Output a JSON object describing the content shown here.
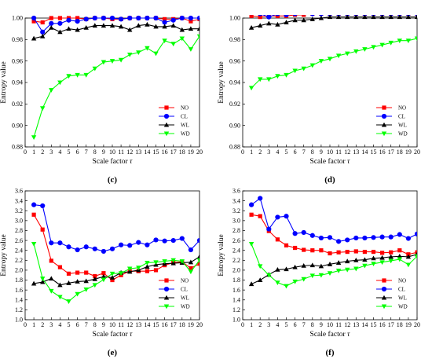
{
  "colors": {
    "NO": "#ff0000",
    "CL": "#0000ff",
    "WL": "#000000",
    "WD": "#00ff00"
  },
  "markers": {
    "NO": "square",
    "CL": "circle",
    "WL": "triangle-up",
    "WD": "triangle-down"
  },
  "chart_data": [
    {
      "type": "line",
      "panel_label": "(c)",
      "xlabel": "Scale factor",
      "xlabel_symbol": "τ",
      "ylabel": "Entropy value",
      "xlim": [
        0,
        20
      ],
      "ylim": [
        0.88,
        1.0
      ],
      "xticks": [
        "0",
        "1",
        "2",
        "3",
        "4",
        "5",
        "6",
        "7",
        "8",
        "9",
        "10",
        "11",
        "12",
        "13",
        "14",
        "15",
        "16",
        "17",
        "18",
        "19",
        "20"
      ],
      "yticks": [
        "0.88",
        "0.90",
        "0.92",
        "0.94",
        "0.96",
        "0.98",
        "1.00"
      ],
      "legend_position": "bottom-right",
      "x": [
        1,
        2,
        3,
        4,
        5,
        6,
        7,
        8,
        9,
        10,
        11,
        12,
        13,
        14,
        15,
        16,
        17,
        18,
        19,
        20
      ],
      "series": [
        {
          "name": "NO",
          "values": [
            0.997,
            0.996,
            1.0,
            1.0,
            1.0,
            1.0,
            0.999,
            1.0,
            1.0,
            0.999,
            0.999,
            1.0,
            1.0,
            1.0,
            1.0,
            0.999,
            0.999,
            1.0,
            0.997,
            0.999
          ]
        },
        {
          "name": "CL",
          "values": [
            1.0,
            0.987,
            0.995,
            0.995,
            0.998,
            0.997,
            0.999,
            1.0,
            1.0,
            1.0,
            0.999,
            1.0,
            1.0,
            1.0,
            1.0,
            0.996,
            0.998,
            1.0,
            1.0,
            1.0
          ]
        },
        {
          "name": "WL",
          "values": [
            0.981,
            0.983,
            0.991,
            0.987,
            0.99,
            0.989,
            0.991,
            0.993,
            0.993,
            0.993,
            0.992,
            0.989,
            0.993,
            0.994,
            0.992,
            0.992,
            0.993,
            0.989,
            0.99,
            0.99
          ]
        },
        {
          "name": "WD",
          "values": [
            0.889,
            0.916,
            0.933,
            0.94,
            0.946,
            0.947,
            0.947,
            0.953,
            0.959,
            0.96,
            0.961,
            0.966,
            0.968,
            0.972,
            0.967,
            0.979,
            0.976,
            0.981,
            0.971,
            0.983
          ]
        }
      ]
    },
    {
      "type": "line",
      "panel_label": "(d)",
      "xlabel": "Scale factor",
      "xlabel_symbol": "τ",
      "ylabel": "Entropy value",
      "xlim": [
        0,
        20
      ],
      "ylim": [
        0.88,
        1.0
      ],
      "xticks": [
        "0",
        "1",
        "2",
        "3",
        "4",
        "5",
        "6",
        "7",
        "8",
        "9",
        "10",
        "11",
        "12",
        "13",
        "14",
        "15",
        "16",
        "17",
        "18",
        "19",
        "20"
      ],
      "yticks": [
        "0.88",
        "0.90",
        "0.92",
        "0.94",
        "0.96",
        "0.98",
        "1.00"
      ],
      "legend_position": "bottom-right",
      "x": [
        1,
        2,
        3,
        4,
        5,
        6,
        7,
        8,
        9,
        10,
        11,
        12,
        13,
        14,
        15,
        16,
        17,
        18,
        19,
        20
      ],
      "series": [
        {
          "name": "NO",
          "values": [
            1.002,
            1.001,
            1.002,
            1.002,
            1.002,
            1.003,
            1.003,
            1.004,
            1.004,
            1.004,
            1.004,
            1.004,
            1.004,
            1.004,
            1.004,
            1.004,
            1.004,
            1.004,
            1.004,
            1.004
          ]
        },
        {
          "name": "CL",
          "values": [
            1.005,
            1.004,
            1.001,
            1.004,
            1.003,
            1.004,
            1.005,
            1.004,
            1.004,
            1.004,
            1.004,
            1.004,
            1.004,
            1.004,
            1.004,
            1.004,
            1.004,
            1.004,
            1.004,
            1.004
          ]
        },
        {
          "name": "WL",
          "values": [
            0.991,
            0.993,
            0.995,
            0.994,
            0.996,
            0.998,
            0.998,
            0.999,
            1.0,
            1.001,
            1.001,
            1.001,
            1.001,
            1.001,
            1.001,
            1.001,
            1.001,
            1.001,
            1.001,
            1.001
          ]
        },
        {
          "name": "WD",
          "values": [
            0.935,
            0.943,
            0.943,
            0.946,
            0.947,
            0.951,
            0.953,
            0.956,
            0.96,
            0.962,
            0.965,
            0.967,
            0.969,
            0.971,
            0.973,
            0.975,
            0.977,
            0.979,
            0.979,
            0.981
          ]
        }
      ]
    },
    {
      "type": "line",
      "panel_label": "(e)",
      "xlabel": "Scale factor",
      "xlabel_symbol": "τ",
      "ylabel": "Entropy value",
      "xlim": [
        0,
        20
      ],
      "ylim": [
        1.0,
        3.6
      ],
      "xticks": [
        "0",
        "1",
        "2",
        "3",
        "4",
        "5",
        "6",
        "7",
        "8",
        "9",
        "10",
        "11",
        "12",
        "13",
        "14",
        "15",
        "16",
        "17",
        "18",
        "19",
        "20"
      ],
      "yticks": [
        "1.0",
        "1.2",
        "1.4",
        "1.6",
        "1.8",
        "2.0",
        "2.2",
        "2.4",
        "2.6",
        "2.8",
        "3.0",
        "3.2",
        "3.4",
        "3.6"
      ],
      "legend_position": "bottom-right",
      "x": [
        1,
        2,
        3,
        4,
        5,
        6,
        7,
        8,
        9,
        10,
        11,
        12,
        13,
        14,
        15,
        16,
        17,
        18,
        19,
        20
      ],
      "series": [
        {
          "name": "NO",
          "values": [
            3.12,
            2.82,
            2.19,
            2.06,
            1.93,
            1.95,
            1.95,
            1.88,
            1.94,
            1.8,
            1.9,
            1.98,
            1.98,
            1.98,
            2.0,
            2.1,
            2.15,
            2.17,
            2.04,
            2.13
          ]
        },
        {
          "name": "CL",
          "values": [
            3.32,
            3.3,
            2.55,
            2.55,
            2.47,
            2.41,
            2.47,
            2.43,
            2.38,
            2.43,
            2.51,
            2.5,
            2.56,
            2.51,
            2.61,
            2.59,
            2.6,
            2.64,
            2.41,
            2.6
          ]
        },
        {
          "name": "WL",
          "values": [
            1.73,
            1.76,
            1.83,
            1.7,
            1.74,
            1.77,
            1.78,
            1.82,
            1.87,
            1.85,
            1.95,
            1.97,
            2.0,
            2.07,
            2.11,
            2.13,
            2.14,
            2.15,
            2.16,
            2.27
          ]
        },
        {
          "name": "WD",
          "values": [
            2.53,
            1.83,
            1.58,
            1.46,
            1.37,
            1.52,
            1.61,
            1.7,
            1.81,
            1.93,
            1.94,
            2.03,
            2.05,
            2.15,
            2.16,
            2.18,
            2.2,
            2.18,
            1.97,
            2.2
          ]
        }
      ]
    },
    {
      "type": "line",
      "panel_label": "(f)",
      "xlabel": "Scale factor",
      "xlabel_symbol": "τ",
      "ylabel": "Entropy value",
      "xlim": [
        0,
        20
      ],
      "ylim": [
        1.0,
        3.6
      ],
      "xticks": [
        "0",
        "1",
        "2",
        "3",
        "4",
        "5",
        "6",
        "7",
        "8",
        "9",
        "10",
        "11",
        "12",
        "13",
        "14",
        "15",
        "16",
        "17",
        "18",
        "19",
        "20"
      ],
      "yticks": [
        "1.0",
        "1.2",
        "1.4",
        "1.6",
        "1.8",
        "2.0",
        "2.2",
        "2.4",
        "2.6",
        "2.8",
        "3.0",
        "3.2",
        "3.4",
        "3.6"
      ],
      "legend_position": "bottom-right",
      "x": [
        1,
        2,
        3,
        4,
        5,
        6,
        7,
        8,
        9,
        10,
        11,
        12,
        13,
        14,
        15,
        16,
        17,
        18,
        19,
        20
      ],
      "series": [
        {
          "name": "NO",
          "values": [
            3.12,
            3.09,
            2.79,
            2.62,
            2.5,
            2.45,
            2.41,
            2.4,
            2.4,
            2.34,
            2.36,
            2.37,
            2.38,
            2.37,
            2.37,
            2.35,
            2.36,
            2.4,
            2.32,
            2.36
          ]
        },
        {
          "name": "CL",
          "values": [
            3.32,
            3.45,
            2.83,
            3.07,
            3.09,
            2.74,
            2.76,
            2.7,
            2.65,
            2.66,
            2.58,
            2.61,
            2.65,
            2.65,
            2.66,
            2.67,
            2.67,
            2.72,
            2.64,
            2.73
          ]
        },
        {
          "name": "WL",
          "values": [
            1.72,
            1.8,
            1.91,
            2.01,
            2.02,
            2.06,
            2.09,
            2.1,
            2.08,
            2.12,
            2.15,
            2.18,
            2.2,
            2.21,
            2.24,
            2.25,
            2.27,
            2.28,
            2.27,
            2.32
          ]
        },
        {
          "name": "WD",
          "values": [
            2.53,
            2.08,
            1.9,
            1.75,
            1.68,
            1.77,
            1.82,
            1.89,
            1.9,
            1.94,
            1.99,
            2.01,
            2.03,
            2.09,
            2.13,
            2.16,
            2.19,
            2.22,
            2.11,
            2.28
          ]
        }
      ]
    }
  ]
}
